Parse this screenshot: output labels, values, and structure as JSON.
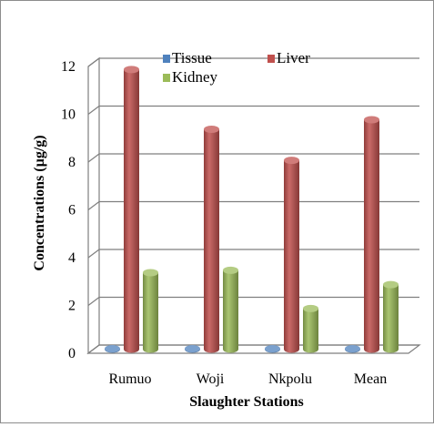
{
  "chart_data": {
    "type": "bar",
    "xlabel": "Slaughter Stations",
    "ylabel": "Concentrations (µg/g)",
    "categories": [
      "Rumuo",
      "Woji",
      "Nkpolu",
      "Mean"
    ],
    "ylim": [
      0,
      12
    ],
    "yticks": [
      "0",
      "2",
      "4",
      "6",
      "8",
      "10",
      "12"
    ],
    "grid": true,
    "legend_position": "top",
    "series": [
      {
        "name": "Tissue",
        "color": "#4f81bd",
        "values": [
          0.02,
          0.02,
          0.02,
          0.02
        ]
      },
      {
        "name": "Liver",
        "color": "#c0504d",
        "values": [
          11.7,
          9.2,
          7.9,
          9.6
        ]
      },
      {
        "name": "Kidney",
        "color": "#9bbb59",
        "values": [
          3.2,
          3.3,
          1.7,
          2.7
        ]
      }
    ]
  }
}
